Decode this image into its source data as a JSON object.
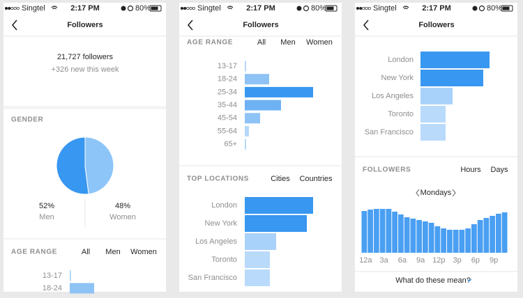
{
  "screens": [
    {
      "status": {
        "carrier": "Singtel",
        "time": "2:17 PM",
        "battery": "80%"
      },
      "title": "Followers",
      "summary": {
        "followers": "21,727 followers",
        "new": "+326 new this week"
      },
      "gender": {
        "heading": "GENDER",
        "type": "pie",
        "categories": [
          "Men",
          "Women"
        ],
        "values": [
          52,
          48
        ],
        "value_labels": [
          "52%",
          "48%"
        ],
        "colors": [
          "#3897f0",
          "#8ec5f8"
        ]
      },
      "age_range": {
        "heading": "AGE RANGE",
        "tabs": [
          "All",
          "Men",
          "Women"
        ],
        "type": "bar",
        "categories": [
          "13-17",
          "18-24"
        ],
        "values": [
          2,
          35
        ],
        "colors": [
          "#b5d8fb",
          "#8ec3f6"
        ]
      }
    },
    {
      "status": {
        "carrier": "Singtel",
        "time": "2:17 PM",
        "battery": "80%"
      },
      "title": "Followers",
      "age_range": {
        "heading": "AGE RANGE",
        "tabs": [
          "All",
          "Men",
          "Women"
        ],
        "type": "bar",
        "categories": [
          "13-17",
          "18-24",
          "25-34",
          "35-44",
          "45-54",
          "55-64",
          "65+"
        ],
        "values": [
          2,
          35,
          98,
          52,
          22,
          6,
          2
        ],
        "colors": [
          "#b5d8fb",
          "#8ec3f6",
          "#3897f0",
          "#6fb2f4",
          "#8ec3f6",
          "#b5d8fb",
          "#b5d8fb"
        ]
      },
      "locations": {
        "heading": "TOP LOCATIONS",
        "tabs": [
          "Cities",
          "Countries"
        ],
        "type": "bar",
        "categories": [
          "London",
          "New York",
          "Los Angeles",
          "Toronto",
          "San Francisco"
        ],
        "values": [
          98,
          89,
          45,
          36,
          36
        ],
        "colors": [
          "#3897f0",
          "#3897f0",
          "#a9d2fa",
          "#b9dafb",
          "#b9dafb"
        ]
      }
    },
    {
      "status": {
        "carrier": "Singtel",
        "time": "2:17 PM",
        "battery": "80%"
      },
      "title": "Followers",
      "locations": {
        "type": "bar",
        "categories": [
          "London",
          "New York",
          "Los Angeles",
          "Toronto",
          "San Francisco"
        ],
        "values": [
          99,
          90,
          46,
          36,
          36
        ],
        "colors": [
          "#3897f0",
          "#3897f0",
          "#a9d2fa",
          "#b9dafb",
          "#b9dafb"
        ]
      },
      "followers": {
        "heading": "FOLLOWERS",
        "tabs": [
          "Hours",
          "Days"
        ],
        "day": "Mondays",
        "type": "bar",
        "color": "#4a9ff2",
        "categories": [
          "12a",
          null,
          null,
          "3a",
          null,
          null,
          "6a",
          null,
          null,
          "9a",
          null,
          null,
          "12p",
          null,
          null,
          "3p",
          null,
          null,
          "6p",
          null,
          null,
          "9p",
          null,
          null
        ],
        "values": [
          60,
          62,
          63,
          63,
          63,
          59,
          55,
          51,
          49,
          47,
          45,
          43,
          38,
          35,
          33,
          33,
          33,
          35,
          41,
          47,
          50,
          53,
          56,
          58
        ]
      },
      "link": "What do these mean?"
    }
  ]
}
